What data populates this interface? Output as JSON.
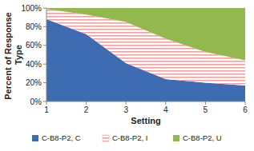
{
  "chart_data": {
    "type": "area",
    "stacked": true,
    "x": [
      1,
      2,
      3,
      4,
      5,
      6
    ],
    "xlabel": "Setting",
    "ylabel": "Percent of Response Type",
    "series": [
      {
        "name": "C-B8-P2, C",
        "color": "#3d6cb3",
        "values": [
          88,
          72,
          41,
          24,
          20,
          17
        ]
      },
      {
        "name": "C-B8-P2, I",
        "color": "#f2a0a0",
        "values": [
          11,
          21,
          44,
          43,
          33,
          27
        ]
      },
      {
        "name": "C-B8-P2, U",
        "color": "#93b84f",
        "values": [
          1,
          7,
          15,
          33,
          47,
          56
        ]
      }
    ],
    "xlim": [
      1,
      6
    ],
    "xticks": [
      1,
      2,
      3,
      4,
      5,
      6
    ],
    "ylim": [
      0,
      100
    ],
    "yticks": [
      {
        "value": 0,
        "label": "0%"
      },
      {
        "value": 20,
        "label": "20%"
      },
      {
        "value": 40,
        "label": "40%"
      },
      {
        "value": 60,
        "label": "60%"
      },
      {
        "value": 80,
        "label": "80%"
      },
      {
        "value": 100,
        "label": "100%"
      }
    ],
    "grid": false,
    "legend": "bottom"
  }
}
